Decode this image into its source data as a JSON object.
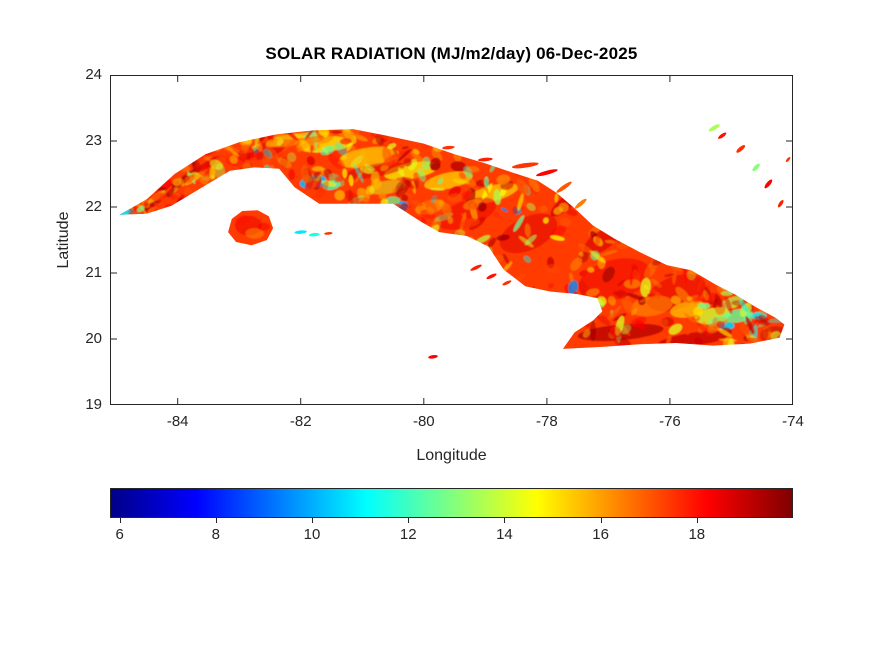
{
  "chart_data": {
    "type": "heatmap",
    "title": "SOLAR RADIATION (MJ/m2/day) 06-Dec-2025",
    "xlabel": "Longitude",
    "ylabel": "Latitude",
    "region": "Cuba",
    "xlim": [
      -85.1,
      -74
    ],
    "ylim": [
      19,
      24
    ],
    "xticks": [
      -84,
      -82,
      -80,
      -78,
      -76,
      -74
    ],
    "yticks": [
      24,
      23,
      22,
      21,
      20,
      19
    ],
    "grid": false,
    "colorbar": {
      "orientation": "horizontal",
      "ticks": [
        6,
        8,
        10,
        12,
        14,
        16,
        18
      ],
      "clim": [
        5.8,
        20
      ],
      "colormap": "jet",
      "jet_stops": [
        {
          "f": 0.0,
          "color": "#000087"
        },
        {
          "f": 0.125,
          "color": "#0000ff"
        },
        {
          "f": 0.375,
          "color": "#00ffff"
        },
        {
          "f": 0.625,
          "color": "#ffff00"
        },
        {
          "f": 0.875,
          "color": "#ff0000"
        },
        {
          "f": 1.0,
          "color": "#800000"
        }
      ]
    },
    "base_value": 17.4,
    "outlines": {
      "mainland": [
        [
          -84.95,
          21.88
        ],
        [
          -84.5,
          22.12
        ],
        [
          -84.05,
          22.5
        ],
        [
          -83.55,
          22.8
        ],
        [
          -83.0,
          22.98
        ],
        [
          -82.4,
          23.1
        ],
        [
          -81.8,
          23.16
        ],
        [
          -81.15,
          23.18
        ],
        [
          -80.6,
          23.08
        ],
        [
          -80.0,
          22.96
        ],
        [
          -79.5,
          22.8
        ],
        [
          -79.0,
          22.66
        ],
        [
          -78.55,
          22.52
        ],
        [
          -78.15,
          22.4
        ],
        [
          -77.85,
          22.22
        ],
        [
          -77.55,
          21.98
        ],
        [
          -77.25,
          21.72
        ],
        [
          -76.9,
          21.52
        ],
        [
          -76.5,
          21.32
        ],
        [
          -76.05,
          21.12
        ],
        [
          -75.65,
          21.04
        ],
        [
          -75.25,
          20.82
        ],
        [
          -74.95,
          20.68
        ],
        [
          -74.6,
          20.48
        ],
        [
          -74.28,
          20.32
        ],
        [
          -74.14,
          20.22
        ],
        [
          -74.22,
          20.02
        ],
        [
          -74.7,
          19.93
        ],
        [
          -75.3,
          19.9
        ],
        [
          -75.9,
          19.94
        ],
        [
          -76.5,
          19.92
        ],
        [
          -77.1,
          19.88
        ],
        [
          -77.74,
          19.85
        ],
        [
          -77.55,
          20.1
        ],
        [
          -77.25,
          20.28
        ],
        [
          -77.1,
          20.42
        ],
        [
          -77.18,
          20.62
        ],
        [
          -77.5,
          20.68
        ],
        [
          -77.95,
          20.72
        ],
        [
          -78.35,
          20.8
        ],
        [
          -78.7,
          21.05
        ],
        [
          -78.95,
          21.4
        ],
        [
          -79.3,
          21.56
        ],
        [
          -79.75,
          21.62
        ],
        [
          -80.05,
          21.78
        ],
        [
          -80.5,
          22.05
        ],
        [
          -81.15,
          22.05
        ],
        [
          -81.7,
          22.05
        ],
        [
          -82.1,
          22.3
        ],
        [
          -82.35,
          22.58
        ],
        [
          -82.75,
          22.6
        ],
        [
          -83.15,
          22.55
        ],
        [
          -83.6,
          22.3
        ],
        [
          -84.1,
          22.02
        ],
        [
          -84.5,
          21.9
        ]
      ],
      "isla_juventud": [
        [
          -83.18,
          21.62
        ],
        [
          -83.12,
          21.82
        ],
        [
          -82.95,
          21.94
        ],
        [
          -82.7,
          21.95
        ],
        [
          -82.52,
          21.86
        ],
        [
          -82.45,
          21.68
        ],
        [
          -82.55,
          21.5
        ],
        [
          -82.8,
          21.42
        ],
        [
          -83.05,
          21.47
        ]
      ]
    },
    "features_format": "lon,lat,rx_deg,ry_deg,value,rot_deg,opacity",
    "features": [
      [
        -84.45,
        22.02,
        0.3,
        0.05,
        19.2,
        -35,
        0.85
      ],
      [
        -84.15,
        22.25,
        0.35,
        0.06,
        19.0,
        -35,
        0.8
      ],
      [
        -83.85,
        22.45,
        0.32,
        0.05,
        19.3,
        -35,
        0.8
      ],
      [
        -83.55,
        22.62,
        0.3,
        0.05,
        18.8,
        -35,
        0.7
      ],
      [
        -84.3,
        22.18,
        0.25,
        0.04,
        15.2,
        -35,
        0.7
      ],
      [
        -83.7,
        22.45,
        0.22,
        0.04,
        15.0,
        -35,
        0.6
      ],
      [
        -84.85,
        21.92,
        0.08,
        0.05,
        12.0,
        0,
        0.85
      ],
      [
        -84.7,
        21.98,
        0.06,
        0.04,
        14.0,
        0,
        0.8
      ],
      [
        -82.6,
        22.85,
        0.35,
        0.12,
        18.6,
        -15,
        0.6
      ],
      [
        -82.2,
        23.0,
        0.3,
        0.08,
        16.0,
        -10,
        0.6
      ],
      [
        -82.0,
        23.08,
        0.45,
        0.04,
        14.5,
        -5,
        0.6
      ],
      [
        -81.6,
        22.95,
        0.45,
        0.12,
        14.8,
        -5,
        0.75
      ],
      [
        -80.9,
        22.75,
        0.5,
        0.15,
        15.2,
        -8,
        0.7
      ],
      [
        -80.2,
        22.55,
        0.45,
        0.12,
        14.6,
        -10,
        0.7
      ],
      [
        -79.6,
        22.4,
        0.4,
        0.12,
        15.0,
        -12,
        0.65
      ],
      [
        -78.9,
        22.2,
        0.45,
        0.12,
        14.8,
        -15,
        0.6
      ],
      [
        -81.8,
        22.38,
        0.22,
        0.1,
        10.2,
        -10,
        0.9
      ],
      [
        -81.5,
        22.33,
        0.15,
        0.07,
        12.0,
        -10,
        0.8
      ],
      [
        -80.35,
        22.02,
        0.1,
        0.07,
        10.0,
        0,
        0.9
      ],
      [
        -80.5,
        22.1,
        0.12,
        0.06,
        12.5,
        0,
        0.7
      ],
      [
        -80.6,
        22.3,
        0.3,
        0.1,
        14.2,
        -10,
        0.5
      ],
      [
        -79.9,
        22.0,
        0.25,
        0.1,
        15.5,
        -15,
        0.5
      ],
      [
        -80.8,
        22.55,
        0.5,
        0.1,
        18.8,
        -10,
        0.5
      ],
      [
        -79.3,
        21.9,
        0.5,
        0.2,
        18.5,
        -20,
        0.5
      ],
      [
        -78.3,
        21.6,
        0.5,
        0.25,
        18.7,
        -25,
        0.5
      ],
      [
        -77.7,
        22.05,
        0.3,
        0.1,
        18.9,
        -40,
        0.7
      ],
      [
        -77.1,
        21.5,
        0.35,
        0.15,
        18.8,
        -35,
        0.6
      ],
      [
        -76.8,
        20.1,
        0.7,
        0.12,
        19.2,
        -5,
        0.8
      ],
      [
        -75.6,
        20.0,
        0.6,
        0.1,
        19.0,
        -8,
        0.8
      ],
      [
        -76.9,
        20.9,
        0.6,
        0.3,
        18.4,
        -15,
        0.5
      ],
      [
        -75.9,
        20.7,
        0.5,
        0.25,
        18.6,
        -20,
        0.5
      ],
      [
        -75.3,
        20.35,
        0.3,
        0.12,
        14.0,
        -10,
        0.8
      ],
      [
        -74.9,
        20.35,
        0.25,
        0.1,
        12.5,
        -10,
        0.8
      ],
      [
        -75.1,
        20.2,
        0.15,
        0.06,
        10.5,
        0,
        0.9
      ],
      [
        -74.55,
        20.35,
        0.12,
        0.06,
        11.0,
        0,
        0.85
      ],
      [
        -75.7,
        20.45,
        0.3,
        0.12,
        15.0,
        -10,
        0.6
      ],
      [
        -76.3,
        20.5,
        0.35,
        0.15,
        16.0,
        -10,
        0.5
      ],
      [
        -75.0,
        20.55,
        0.2,
        0.08,
        13.5,
        -20,
        0.7
      ],
      [
        -74.75,
        20.45,
        0.08,
        0.04,
        10.5,
        0,
        0.9
      ],
      [
        -75.45,
        20.5,
        0.1,
        0.05,
        12.8,
        0,
        0.8
      ],
      [
        -82.85,
        21.72,
        0.22,
        0.15,
        18.5,
        0,
        0.5
      ],
      [
        -82.75,
        21.6,
        0.15,
        0.08,
        16.2,
        0,
        0.5
      ],
      [
        -82.95,
        21.8,
        0.12,
        0.07,
        17.9,
        -20,
        0.6
      ],
      [
        -82.6,
        21.7,
        0.1,
        0.06,
        18.3,
        0,
        0.5
      ]
    ],
    "cays_format": "lon,lat,rx_deg,ry_deg,value,rot_deg",
    "cays": [
      [
        -78.35,
        22.63,
        0.22,
        0.035,
        17.5,
        -8
      ],
      [
        -78.0,
        22.52,
        0.18,
        0.03,
        18.2,
        -15
      ],
      [
        -77.72,
        22.3,
        0.15,
        0.03,
        17.0,
        -35
      ],
      [
        -77.45,
        22.05,
        0.12,
        0.03,
        16.5,
        -40
      ],
      [
        -79.0,
        22.72,
        0.12,
        0.025,
        17.8,
        -5
      ],
      [
        -79.6,
        22.9,
        0.1,
        0.025,
        17.5,
        -5
      ],
      [
        -75.28,
        23.2,
        0.1,
        0.03,
        13.5,
        -30
      ],
      [
        -75.15,
        23.08,
        0.08,
        0.025,
        18.0,
        -35
      ],
      [
        -74.85,
        22.88,
        0.09,
        0.03,
        17.6,
        -40
      ],
      [
        -74.6,
        22.6,
        0.08,
        0.03,
        13.0,
        -45
      ],
      [
        -74.4,
        22.35,
        0.09,
        0.03,
        18.2,
        -50
      ],
      [
        -74.2,
        22.05,
        0.07,
        0.025,
        17.8,
        -55
      ],
      [
        -74.08,
        22.72,
        0.05,
        0.02,
        17.5,
        -50
      ],
      [
        -82.0,
        21.62,
        0.1,
        0.025,
        10.8,
        -5
      ],
      [
        -81.78,
        21.58,
        0.09,
        0.025,
        11.5,
        -5
      ],
      [
        -81.55,
        21.6,
        0.07,
        0.02,
        17.5,
        -5
      ],
      [
        -79.15,
        21.08,
        0.1,
        0.025,
        17.8,
        -25
      ],
      [
        -78.9,
        20.95,
        0.09,
        0.025,
        18.0,
        -25
      ],
      [
        -78.65,
        20.85,
        0.08,
        0.022,
        17.6,
        -25
      ],
      [
        -79.85,
        19.73,
        0.08,
        0.025,
        18.2,
        -8
      ]
    ],
    "speckle": {
      "seed": 12345,
      "count": 550,
      "band": [
        [
          -85.1,
          21.95,
          0.2
        ],
        [
          -84.4,
          22.15,
          0.3
        ],
        [
          -83.5,
          22.55,
          0.4
        ],
        [
          -82.3,
          22.82,
          0.38
        ],
        [
          -81.0,
          22.6,
          0.55
        ],
        [
          -79.8,
          22.25,
          0.7
        ],
        [
          -78.6,
          21.7,
          0.9
        ],
        [
          -77.4,
          20.95,
          1.0
        ],
        [
          -76.2,
          20.6,
          0.85
        ],
        [
          -75.0,
          20.35,
          0.55
        ],
        [
          -74.1,
          20.2,
          0.35
        ]
      ],
      "distribution": [
        {
          "weight": 0.4,
          "min": 17.6,
          "max": 19.6
        },
        {
          "weight": 0.33,
          "min": 16.0,
          "max": 17.5
        },
        {
          "weight": 0.18,
          "min": 14.0,
          "max": 15.8
        },
        {
          "weight": 0.06,
          "min": 12.0,
          "max": 13.8
        },
        {
          "weight": 0.03,
          "min": 9.5,
          "max": 11.8
        }
      ]
    },
    "axis_color": "#262626",
    "title_color": "#000000"
  }
}
